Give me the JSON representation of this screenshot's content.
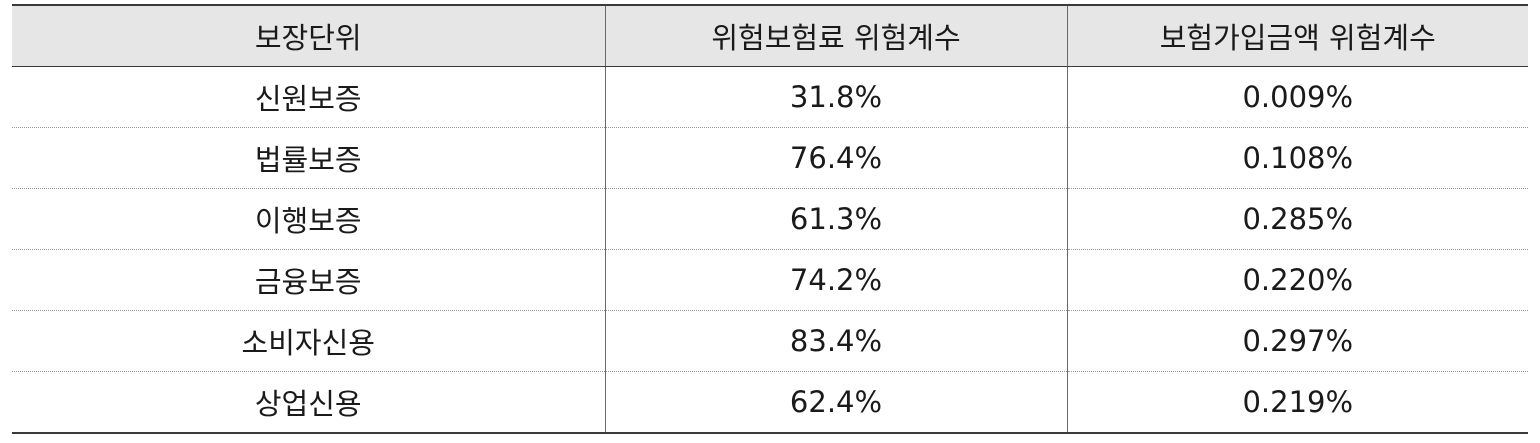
{
  "table": {
    "headers": [
      "보장단위",
      "위험보험료 위험계수",
      "보험가입금액 위험계수"
    ],
    "rows": [
      [
        "신원보증",
        "31.8%",
        "0.009%"
      ],
      [
        "법률보증",
        "76.4%",
        "0.108%"
      ],
      [
        "이행보증",
        "61.3%",
        "0.285%"
      ],
      [
        "금융보증",
        "74.2%",
        "0.220%"
      ],
      [
        "소비자신용",
        "83.4%",
        "0.297%"
      ],
      [
        "상업신용",
        "62.4%",
        "0.219%"
      ]
    ]
  },
  "colors": {
    "header_background": "#e6e6e6",
    "rule": "#3a3a3a",
    "row_separator": "#9a9a9a"
  }
}
